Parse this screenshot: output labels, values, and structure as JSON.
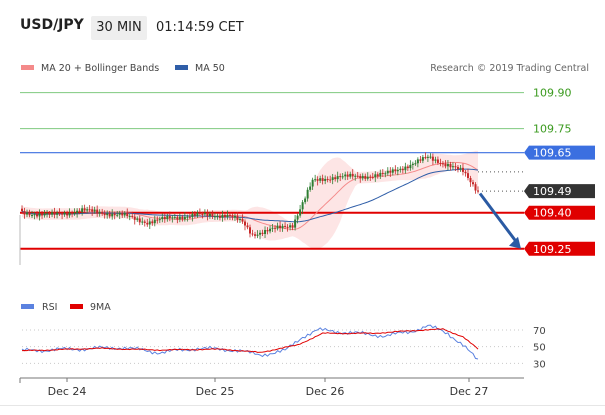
{
  "header": {
    "pair": "USD/JPY",
    "timeframe": "30 MIN",
    "time": "01:14:59 CET"
  },
  "legend": {
    "bollinger_label": "MA 20 + Bollinger Bands",
    "ma50_label": "MA 50",
    "credit": "Research © 2019 Trading Central"
  },
  "colors": {
    "up_candle": "#2e7d32",
    "down_candle": "#c62828",
    "bollinger": "#f48a8a",
    "ma50": "#2f5ea8",
    "resistance_green": "#7fc97f",
    "pivot_blue": "#3b6fe0",
    "support_red": "#e00000",
    "rsi": "#5b82e0",
    "rsi_ma": "#e00000",
    "arrow": "#2a5aa3"
  },
  "chart_data": [
    {
      "type": "candlestick",
      "title": "USD/JPY 30 MIN",
      "x_ticks": [
        "Dec 24",
        "Dec 25",
        "Dec 26",
        "Dec 27"
      ],
      "ylim": [
        109.07,
        109.94
      ],
      "levels": [
        {
          "value": 109.9,
          "label": "109.90",
          "style": "resistance"
        },
        {
          "value": 109.75,
          "label": "109.75",
          "style": "resistance"
        },
        {
          "value": 109.65,
          "label": "109.65",
          "style": "pivot"
        },
        {
          "value": 109.49,
          "label": "109.49",
          "style": "last_price"
        },
        {
          "value": 109.4,
          "label": "109.40",
          "style": "support"
        },
        {
          "value": 109.25,
          "label": "109.25",
          "style": "support"
        }
      ],
      "last_price": 109.49,
      "forecast_arrow": {
        "from": 109.48,
        "to": 109.25
      },
      "anchors": [
        {
          "i": 0,
          "c": 109.4
        },
        {
          "i": 12,
          "c": 109.39
        },
        {
          "i": 24,
          "c": 109.41
        },
        {
          "i": 40,
          "c": 109.39
        },
        {
          "i": 50,
          "c": 109.36
        },
        {
          "i": 60,
          "c": 109.38
        },
        {
          "i": 70,
          "c": 109.39
        },
        {
          "i": 82,
          "c": 109.39
        },
        {
          "i": 88,
          "c": 109.36
        },
        {
          "i": 92,
          "c": 109.31
        },
        {
          "i": 100,
          "c": 109.33
        },
        {
          "i": 108,
          "c": 109.35
        },
        {
          "i": 112,
          "c": 109.44
        },
        {
          "i": 116,
          "c": 109.53
        },
        {
          "i": 125,
          "c": 109.55
        },
        {
          "i": 135,
          "c": 109.55
        },
        {
          "i": 145,
          "c": 109.56
        },
        {
          "i": 155,
          "c": 109.6
        },
        {
          "i": 162,
          "c": 109.63
        },
        {
          "i": 170,
          "c": 109.6
        },
        {
          "i": 176,
          "c": 109.57
        },
        {
          "i": 182,
          "c": 109.49
        }
      ],
      "candle_count": 183,
      "series": [
        {
          "name": "MA 20 + Bollinger Bands"
        },
        {
          "name": "MA 50"
        }
      ]
    },
    {
      "type": "line",
      "x_ticks": [
        "Dec 24",
        "Dec 25",
        "Dec 26",
        "Dec 27"
      ],
      "ylim": [
        22,
        82
      ],
      "y_ticks": [
        70,
        50,
        30
      ],
      "series": [
        {
          "name": "RSI"
        },
        {
          "name": "9MA"
        }
      ],
      "rsi_anchors": [
        {
          "i": 0,
          "v": 45
        },
        {
          "i": 20,
          "v": 47
        },
        {
          "i": 40,
          "v": 49
        },
        {
          "i": 55,
          "v": 43
        },
        {
          "i": 70,
          "v": 48
        },
        {
          "i": 85,
          "v": 46
        },
        {
          "i": 95,
          "v": 40
        },
        {
          "i": 105,
          "v": 45
        },
        {
          "i": 112,
          "v": 62
        },
        {
          "i": 118,
          "v": 70
        },
        {
          "i": 130,
          "v": 67
        },
        {
          "i": 145,
          "v": 63
        },
        {
          "i": 155,
          "v": 68
        },
        {
          "i": 162,
          "v": 75
        },
        {
          "i": 170,
          "v": 66
        },
        {
          "i": 176,
          "v": 52
        },
        {
          "i": 182,
          "v": 33
        }
      ],
      "ma_anchors": [
        {
          "i": 0,
          "v": 45
        },
        {
          "i": 30,
          "v": 48
        },
        {
          "i": 55,
          "v": 46
        },
        {
          "i": 80,
          "v": 47
        },
        {
          "i": 95,
          "v": 43
        },
        {
          "i": 110,
          "v": 52
        },
        {
          "i": 120,
          "v": 66
        },
        {
          "i": 140,
          "v": 66
        },
        {
          "i": 160,
          "v": 70
        },
        {
          "i": 168,
          "v": 71
        },
        {
          "i": 176,
          "v": 62
        },
        {
          "i": 182,
          "v": 47
        }
      ]
    }
  ]
}
